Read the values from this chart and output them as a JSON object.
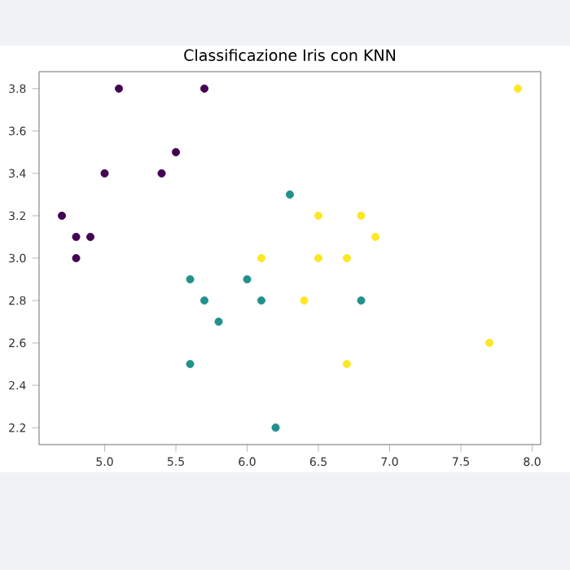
{
  "chart_data": {
    "type": "scatter",
    "title": "Classificazione Iris con KNN",
    "marker": "circle",
    "grid": false,
    "series": [
      {
        "color": "#440154",
        "x": [
          5.1,
          5.7,
          5.5,
          5.0,
          5.4,
          4.7,
          4.8,
          4.9,
          4.8
        ],
        "values": [
          3.8,
          3.8,
          3.5,
          3.4,
          3.4,
          3.2,
          3.1,
          3.1,
          3.0
        ]
      },
      {
        "color": "#21918c",
        "x": [
          6.3,
          5.6,
          6.0,
          5.7,
          6.1,
          5.8,
          5.6,
          6.2,
          6.8
        ],
        "values": [
          3.3,
          2.9,
          2.9,
          2.8,
          2.8,
          2.7,
          2.5,
          2.2,
          2.8
        ]
      },
      {
        "color": "#fde725",
        "x": [
          7.9,
          6.5,
          6.8,
          6.9,
          6.5,
          6.7,
          6.1,
          6.4,
          7.7,
          6.7
        ],
        "values": [
          3.8,
          3.2,
          3.2,
          3.1,
          3.0,
          3.0,
          3.0,
          2.8,
          2.6,
          2.5
        ]
      }
    ],
    "xlim": [
      4.54,
      8.06
    ],
    "ylim": [
      2.12,
      3.88
    ],
    "xticks": [
      {
        "value": 5,
        "label": "5.0"
      },
      5.5,
      {
        "value": 6,
        "label": "6.0"
      },
      6.5,
      {
        "value": 7,
        "label": "7.0"
      },
      7.5,
      {
        "value": 8,
        "label": "8.0"
      }
    ],
    "yticks": [
      2.2,
      2.4,
      2.6,
      2.8,
      {
        "value": 3,
        "label": "3.0"
      },
      3.2,
      3.4,
      3.6,
      3.8
    ]
  }
}
